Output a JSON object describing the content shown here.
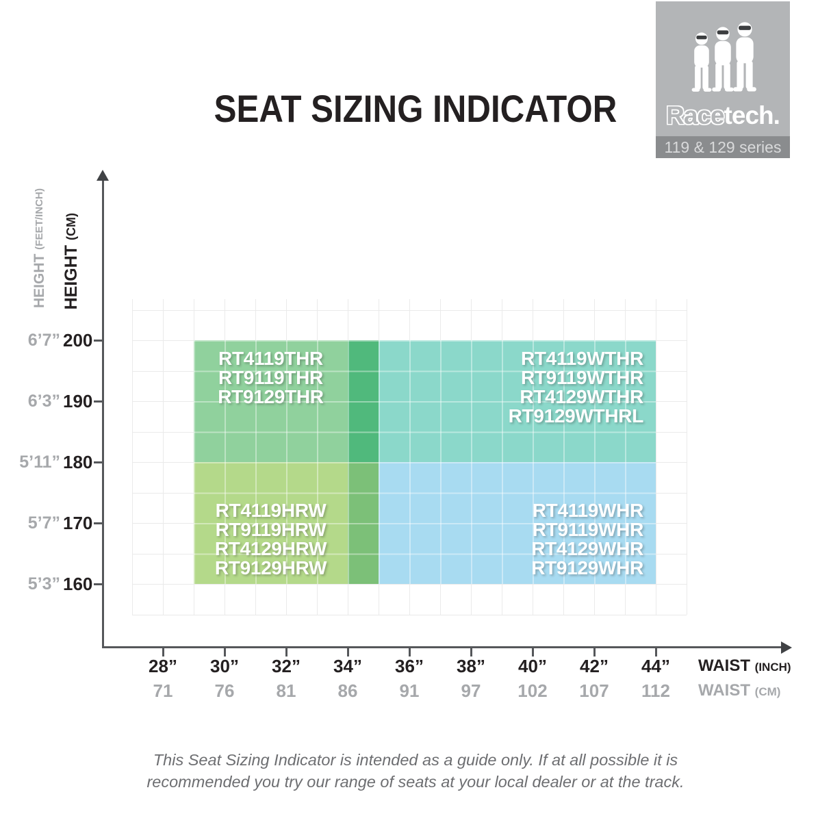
{
  "page": {
    "title": "SEAT SIZING INDICATOR",
    "footer_line1": "This Seat Sizing Indicator is intended as a guide only. If at all possible it is",
    "footer_line2": "recommended you try our range of seats at your local dealer or at the track."
  },
  "logo": {
    "brand_outline": "Race",
    "brand_solid": "tech.",
    "series_label": "119 & 129 series",
    "figures_icon": "three-race-drivers-icon",
    "box_color": "#b3b5b7",
    "band_color": "#8a8c8e"
  },
  "chart_data": {
    "type": "region-grid",
    "title": "SEAT SIZING INDICATOR",
    "x_axis": {
      "label": "WAIST",
      "unit_primary": "(INCH)",
      "unit_secondary": "(CM)",
      "ticks": [
        {
          "inch": "28”",
          "cm": "71",
          "inch_val": 28
        },
        {
          "inch": "30”",
          "cm": "76",
          "inch_val": 30
        },
        {
          "inch": "32”",
          "cm": "81",
          "inch_val": 32
        },
        {
          "inch": "34”",
          "cm": "86",
          "inch_val": 34
        },
        {
          "inch": "36”",
          "cm": "91",
          "inch_val": 36
        },
        {
          "inch": "38”",
          "cm": "97",
          "inch_val": 38
        },
        {
          "inch": "40”",
          "cm": "102",
          "inch_val": 40
        },
        {
          "inch": "42”",
          "cm": "107",
          "inch_val": 42
        },
        {
          "inch": "44”",
          "cm": "112",
          "inch_val": 44
        }
      ],
      "grid_range_inch": [
        27,
        45
      ],
      "grid_step_inch": 1
    },
    "y_axis": {
      "label": "HEIGHT",
      "unit_primary": "(CM)",
      "unit_secondary": "(FEET/INCH)",
      "ticks": [
        {
          "ftin": "6’7”",
          "cm": "200",
          "cm_val": 200
        },
        {
          "ftin": "6’3”",
          "cm": "190",
          "cm_val": 190
        },
        {
          "ftin": "5’11”",
          "cm": "180",
          "cm_val": 180
        },
        {
          "ftin": "5’7”",
          "cm": "170",
          "cm_val": 170
        },
        {
          "ftin": "5’3”",
          "cm": "160",
          "cm_val": 160
        }
      ],
      "grid_range_cm": [
        155,
        205
      ],
      "grid_step_cm": 5
    },
    "regions": [
      {
        "name": "tall-regular",
        "models": [
          "RT4119THR",
          "RT9119THR",
          "RT9129THR"
        ],
        "waist_inch": [
          29,
          35
        ],
        "height_cm": [
          180,
          200
        ],
        "color": "#90d19d",
        "align": "center"
      },
      {
        "name": "tall-wide",
        "models": [
          "RT4119WTHR",
          "RT9119WTHR",
          "RT4129WTHR",
          "RT9129WTHRL"
        ],
        "waist_inch": [
          34,
          44
        ],
        "height_cm": [
          180,
          200
        ],
        "color": "#8bd8ca",
        "align": "right"
      },
      {
        "name": "short-regular",
        "models": [
          "RT4119HRW",
          "RT9119HRW",
          "RT4129HRW",
          "RT9129HRW"
        ],
        "waist_inch": [
          29,
          35
        ],
        "height_cm": [
          160,
          180
        ],
        "color": "#b4d98a",
        "align": "center"
      },
      {
        "name": "short-wide",
        "models": [
          "RT4119WHR",
          "RT9119WHR",
          "RT4129WHR",
          "RT9129WHR"
        ],
        "waist_inch": [
          34,
          44
        ],
        "height_cm": [
          160,
          180
        ],
        "color": "#a8dbf1",
        "align": "right"
      }
    ],
    "overlaps": [
      {
        "name": "tall",
        "waist_inch": [
          34,
          35
        ],
        "height_cm": [
          180,
          200
        ],
        "color": "#50b97c"
      },
      {
        "name": "short",
        "waist_inch": [
          34,
          35
        ],
        "height_cm": [
          160,
          180
        ],
        "color": "#7cc078"
      }
    ],
    "colors": {
      "axis": "#55575a",
      "grid": "#eaeaea",
      "tick_label_primary": "#242021",
      "tick_label_secondary": "#a6a8ab"
    }
  }
}
